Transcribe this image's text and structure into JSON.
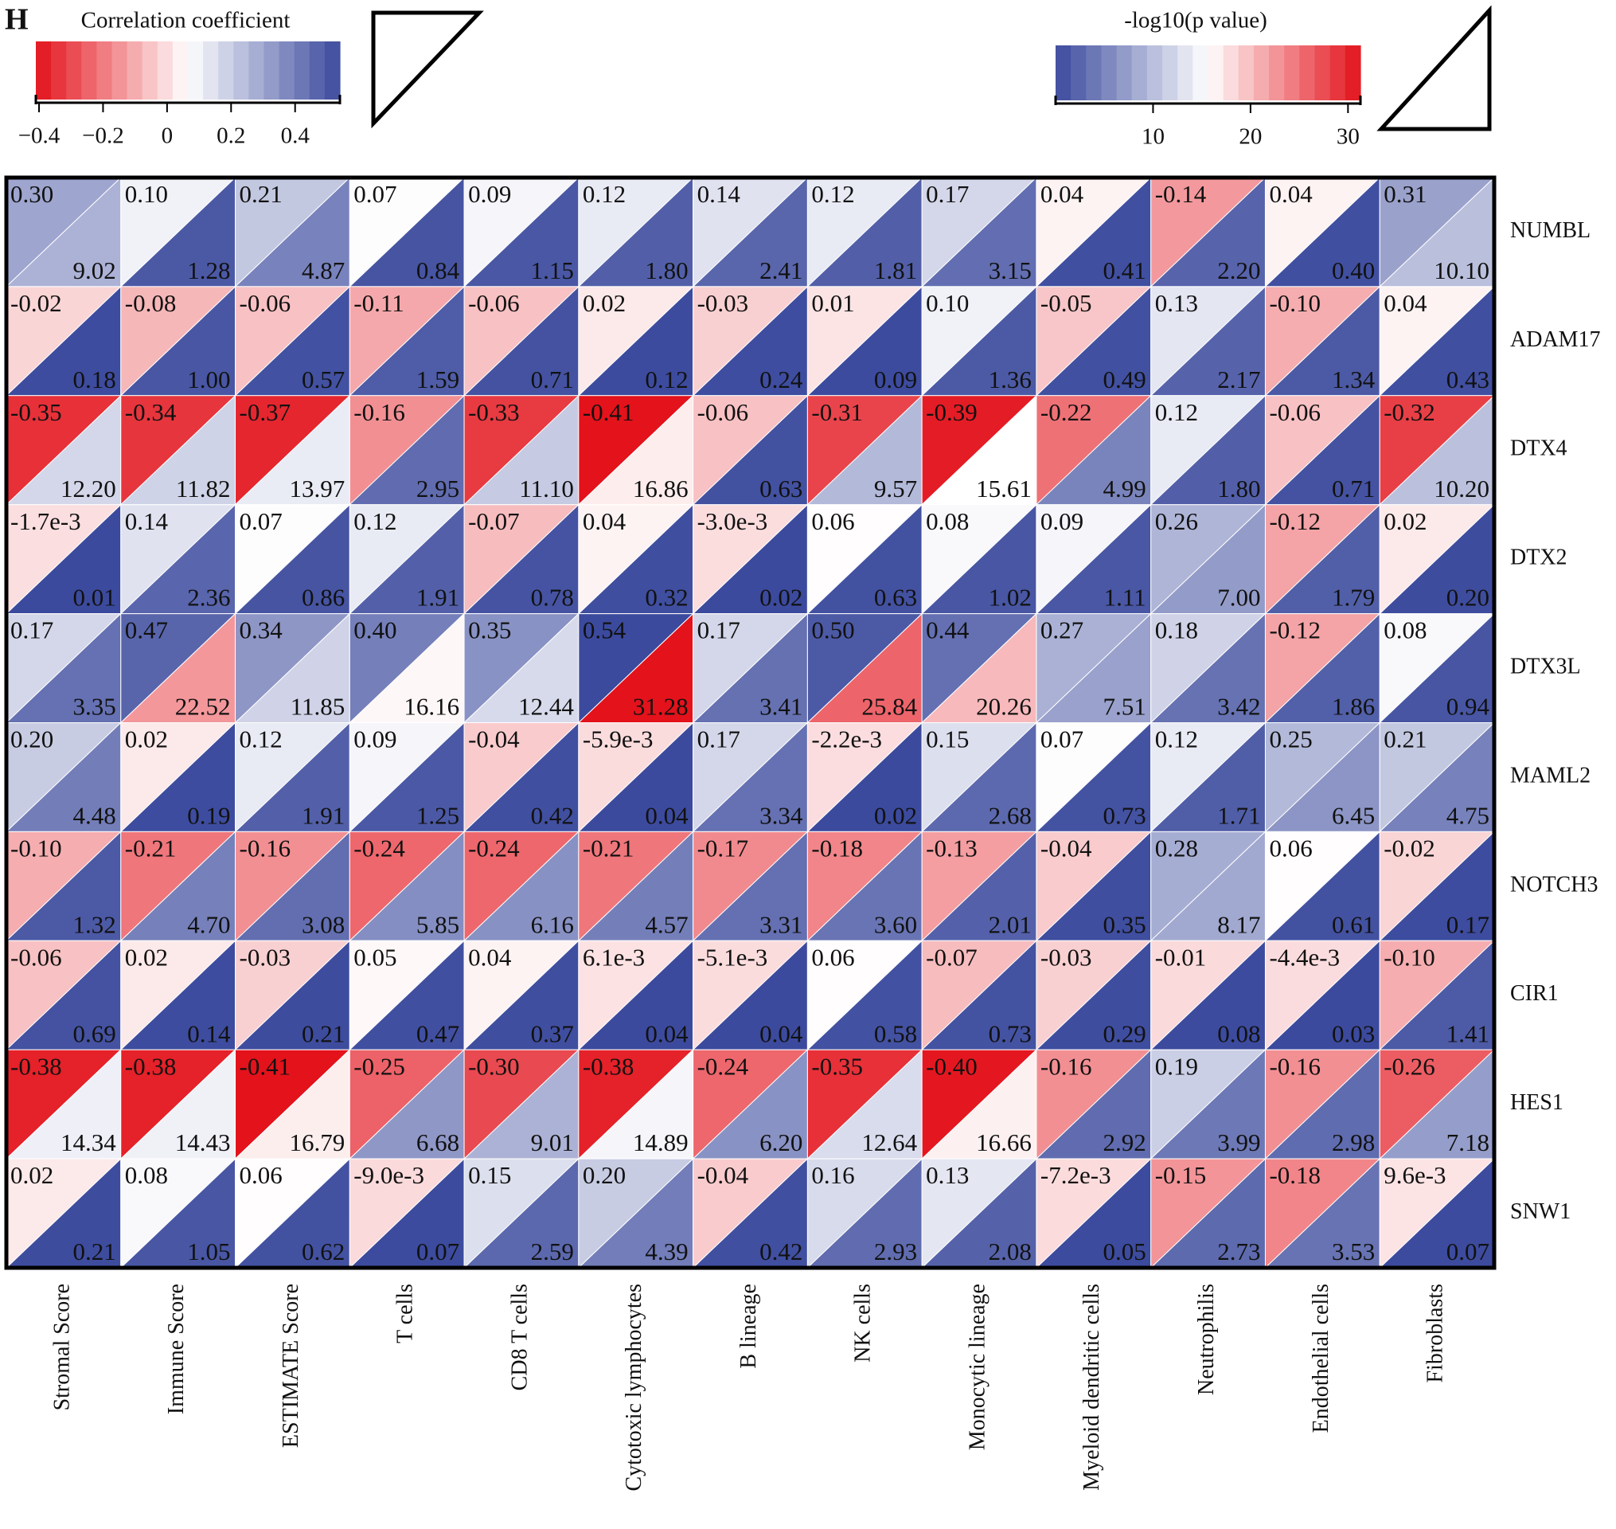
{
  "chart_data": {
    "type": "triangle-heatmap",
    "panel_label": "H",
    "rows": [
      "NUMBL",
      "ADAM17",
      "DTX4",
      "DTX2",
      "DTX3L",
      "MAML2",
      "NOTCH3",
      "CIR1",
      "HES1",
      "SNW1"
    ],
    "columns": [
      "Stromal Score",
      "Immune Score",
      "ESTIMATE Score",
      "T cells",
      "CD8 T cells",
      "Cytotoxic lymphocytes",
      "B lineage",
      "NK cells",
      "Monocytic lineage",
      "Myeloid dendritic cells",
      "Neutrophilis",
      "Endothelial cells",
      "Fibroblasts"
    ],
    "correlation": {
      "title": "Correlation coefficient",
      "lim": [
        -0.41,
        0.54
      ],
      "ticks": [
        {
          "value": -0.4,
          "label": "−0.4"
        },
        {
          "value": -0.2,
          "label": "−0.2"
        },
        0,
        0.2,
        0.4
      ],
      "colors": [
        "#e3121b",
        "#ffffff",
        "#3b4a9d"
      ],
      "values": [
        [
          0.3,
          0.1,
          0.21,
          0.07,
          0.09,
          0.12,
          0.14,
          0.12,
          0.17,
          0.04,
          -0.14,
          0.04,
          0.31
        ],
        [
          -0.02,
          -0.08,
          -0.06,
          -0.11,
          -0.06,
          0.02,
          -0.03,
          0.01,
          0.1,
          -0.05,
          0.13,
          -0.1,
          0.04
        ],
        [
          -0.35,
          -0.34,
          -0.37,
          -0.16,
          -0.33,
          -0.41,
          -0.06,
          -0.31,
          -0.39,
          -0.22,
          0.12,
          -0.06,
          -0.32
        ],
        [
          -0.0017,
          0.14,
          0.07,
          0.12,
          -0.07,
          0.04,
          -0.003,
          0.06,
          0.08,
          0.09,
          0.26,
          -0.12,
          0.02
        ],
        [
          0.17,
          0.47,
          0.34,
          0.4,
          0.35,
          0.54,
          0.17,
          0.5,
          0.44,
          0.27,
          0.18,
          -0.12,
          0.08
        ],
        [
          0.2,
          0.02,
          0.12,
          0.09,
          -0.04,
          -0.0059,
          0.17,
          -0.0022,
          0.15,
          0.07,
          0.12,
          0.25,
          0.21
        ],
        [
          -0.1,
          -0.21,
          -0.16,
          -0.24,
          -0.24,
          -0.21,
          -0.17,
          -0.18,
          -0.13,
          -0.04,
          0.28,
          0.06,
          -0.02
        ],
        [
          -0.06,
          0.02,
          -0.03,
          0.05,
          0.04,
          0.0061,
          -0.0051,
          0.06,
          -0.07,
          -0.03,
          -0.01,
          -0.0044,
          -0.1
        ],
        [
          -0.38,
          -0.38,
          -0.41,
          -0.25,
          -0.3,
          -0.38,
          -0.24,
          -0.35,
          -0.4,
          -0.16,
          0.19,
          -0.16,
          -0.26
        ],
        [
          0.02,
          0.08,
          0.06,
          -0.009,
          0.15,
          0.2,
          -0.04,
          0.16,
          0.13,
          -0.0072,
          -0.15,
          -0.18,
          0.0096
        ]
      ],
      "value_labels": [
        [
          "0.30",
          "0.10",
          "0.21",
          "0.07",
          "0.09",
          "0.12",
          "0.14",
          "0.12",
          "0.17",
          "0.04",
          "-0.14",
          "0.04",
          "0.31"
        ],
        [
          "-0.02",
          "-0.08",
          "-0.06",
          "-0.11",
          "-0.06",
          "0.02",
          "-0.03",
          "0.01",
          "0.10",
          "-0.05",
          "0.13",
          "-0.10",
          "0.04"
        ],
        [
          "-0.35",
          "-0.34",
          "-0.37",
          "-0.16",
          "-0.33",
          "-0.41",
          "-0.06",
          "-0.31",
          "-0.39",
          "-0.22",
          "0.12",
          "-0.06",
          "-0.32"
        ],
        [
          "-1.7e-3",
          "0.14",
          "0.07",
          "0.12",
          "-0.07",
          "0.04",
          "-3.0e-3",
          "0.06",
          "0.08",
          "0.09",
          "0.26",
          "-0.12",
          "0.02"
        ],
        [
          "0.17",
          "0.47",
          "0.34",
          "0.40",
          "0.35",
          "0.54",
          "0.17",
          "0.50",
          "0.44",
          "0.27",
          "0.18",
          "-0.12",
          "0.08"
        ],
        [
          "0.20",
          "0.02",
          "0.12",
          "0.09",
          "-0.04",
          "-5.9e-3",
          "0.17",
          "-2.2e-3",
          "0.15",
          "0.07",
          "0.12",
          "0.25",
          "0.21"
        ],
        [
          "-0.10",
          "-0.21",
          "-0.16",
          "-0.24",
          "-0.24",
          "-0.21",
          "-0.17",
          "-0.18",
          "-0.13",
          "-0.04",
          "0.28",
          "0.06",
          "-0.02"
        ],
        [
          "-0.06",
          "0.02",
          "-0.03",
          "0.05",
          "0.04",
          "6.1e-3",
          "-5.1e-3",
          "0.06",
          "-0.07",
          "-0.03",
          "-0.01",
          "-4.4e-3",
          "-0.10"
        ],
        [
          "-0.38",
          "-0.38",
          "-0.41",
          "-0.25",
          "-0.30",
          "-0.38",
          "-0.24",
          "-0.35",
          "-0.40",
          "-0.16",
          "0.19",
          "-0.16",
          "-0.26"
        ],
        [
          "0.02",
          "0.08",
          "0.06",
          "-9.0e-3",
          "0.15",
          "0.20",
          "-0.04",
          "0.16",
          "0.13",
          "-7.2e-3",
          "-0.15",
          "-0.18",
          "9.6e-3"
        ]
      ]
    },
    "pvalue": {
      "title": "-log10(p value)",
      "lim": [
        0,
        31.28
      ],
      "ticks": [
        10,
        20,
        30
      ],
      "colors": [
        "#3b4a9d",
        "#ffffff",
        "#e3121b"
      ],
      "values": [
        [
          9.02,
          1.28,
          4.87,
          0.84,
          1.15,
          1.8,
          2.41,
          1.81,
          3.15,
          0.41,
          2.2,
          0.4,
          10.1
        ],
        [
          0.18,
          1.0,
          0.57,
          1.59,
          0.71,
          0.12,
          0.24,
          0.09,
          1.36,
          0.49,
          2.17,
          1.34,
          0.43
        ],
        [
          12.2,
          11.82,
          13.97,
          2.95,
          11.1,
          16.86,
          0.63,
          9.57,
          15.61,
          4.99,
          1.8,
          0.71,
          10.2
        ],
        [
          0.01,
          2.36,
          0.86,
          1.91,
          0.78,
          0.32,
          0.02,
          0.63,
          1.02,
          1.11,
          7.0,
          1.79,
          0.2
        ],
        [
          3.35,
          22.52,
          11.85,
          16.16,
          12.44,
          31.28,
          3.41,
          25.84,
          20.26,
          7.51,
          3.42,
          1.86,
          0.94
        ],
        [
          4.48,
          0.19,
          1.91,
          1.25,
          0.42,
          0.04,
          3.34,
          0.02,
          2.68,
          0.73,
          1.71,
          6.45,
          4.75
        ],
        [
          1.32,
          4.7,
          3.08,
          5.85,
          6.16,
          4.57,
          3.31,
          3.6,
          2.01,
          0.35,
          8.17,
          0.61,
          0.17
        ],
        [
          0.69,
          0.14,
          0.21,
          0.47,
          0.37,
          0.04,
          0.04,
          0.58,
          0.73,
          0.29,
          0.08,
          0.03,
          1.41
        ],
        [
          14.34,
          14.43,
          16.79,
          6.68,
          9.01,
          14.89,
          6.2,
          12.64,
          16.66,
          2.92,
          3.99,
          2.98,
          7.18
        ],
        [
          0.21,
          1.05,
          0.62,
          0.07,
          2.59,
          4.39,
          0.42,
          2.93,
          2.08,
          0.05,
          2.73,
          3.53,
          0.07
        ]
      ],
      "value_labels": [
        [
          "9.02",
          "1.28",
          "4.87",
          "0.84",
          "1.15",
          "1.80",
          "2.41",
          "1.81",
          "3.15",
          "0.41",
          "2.20",
          "0.40",
          "10.10"
        ],
        [
          "0.18",
          "1.00",
          "0.57",
          "1.59",
          "0.71",
          "0.12",
          "0.24",
          "0.09",
          "1.36",
          "0.49",
          "2.17",
          "1.34",
          "0.43"
        ],
        [
          "12.20",
          "11.82",
          "13.97",
          "2.95",
          "11.10",
          "16.86",
          "0.63",
          "9.57",
          "15.61",
          "4.99",
          "1.80",
          "0.71",
          "10.20"
        ],
        [
          "0.01",
          "2.36",
          "0.86",
          "1.91",
          "0.78",
          "0.32",
          "0.02",
          "0.63",
          "1.02",
          "1.11",
          "7.00",
          "1.79",
          "0.20"
        ],
        [
          "3.35",
          "22.52",
          "11.85",
          "16.16",
          "12.44",
          "31.28",
          "3.41",
          "25.84",
          "20.26",
          "7.51",
          "3.42",
          "1.86",
          "0.94"
        ],
        [
          "4.48",
          "0.19",
          "1.91",
          "1.25",
          "0.42",
          "0.04",
          "3.34",
          "0.02",
          "2.68",
          "0.73",
          "1.71",
          "6.45",
          "4.75"
        ],
        [
          "1.32",
          "4.70",
          "3.08",
          "5.85",
          "6.16",
          "4.57",
          "3.31",
          "3.60",
          "2.01",
          "0.35",
          "8.17",
          "0.61",
          "0.17"
        ],
        [
          "0.69",
          "0.14",
          "0.21",
          "0.47",
          "0.37",
          "0.04",
          "0.04",
          "0.58",
          "0.73",
          "0.29",
          "0.08",
          "0.03",
          "1.41"
        ],
        [
          "14.34",
          "14.43",
          "16.79",
          "6.68",
          "9.01",
          "14.89",
          "6.20",
          "12.64",
          "16.66",
          "2.92",
          "3.99",
          "2.98",
          "7.18"
        ],
        [
          "0.21",
          "1.05",
          "0.62",
          "0.07",
          "2.59",
          "4.39",
          "0.42",
          "2.93",
          "2.08",
          "0.05",
          "2.73",
          "3.53",
          "0.07"
        ]
      ]
    }
  }
}
